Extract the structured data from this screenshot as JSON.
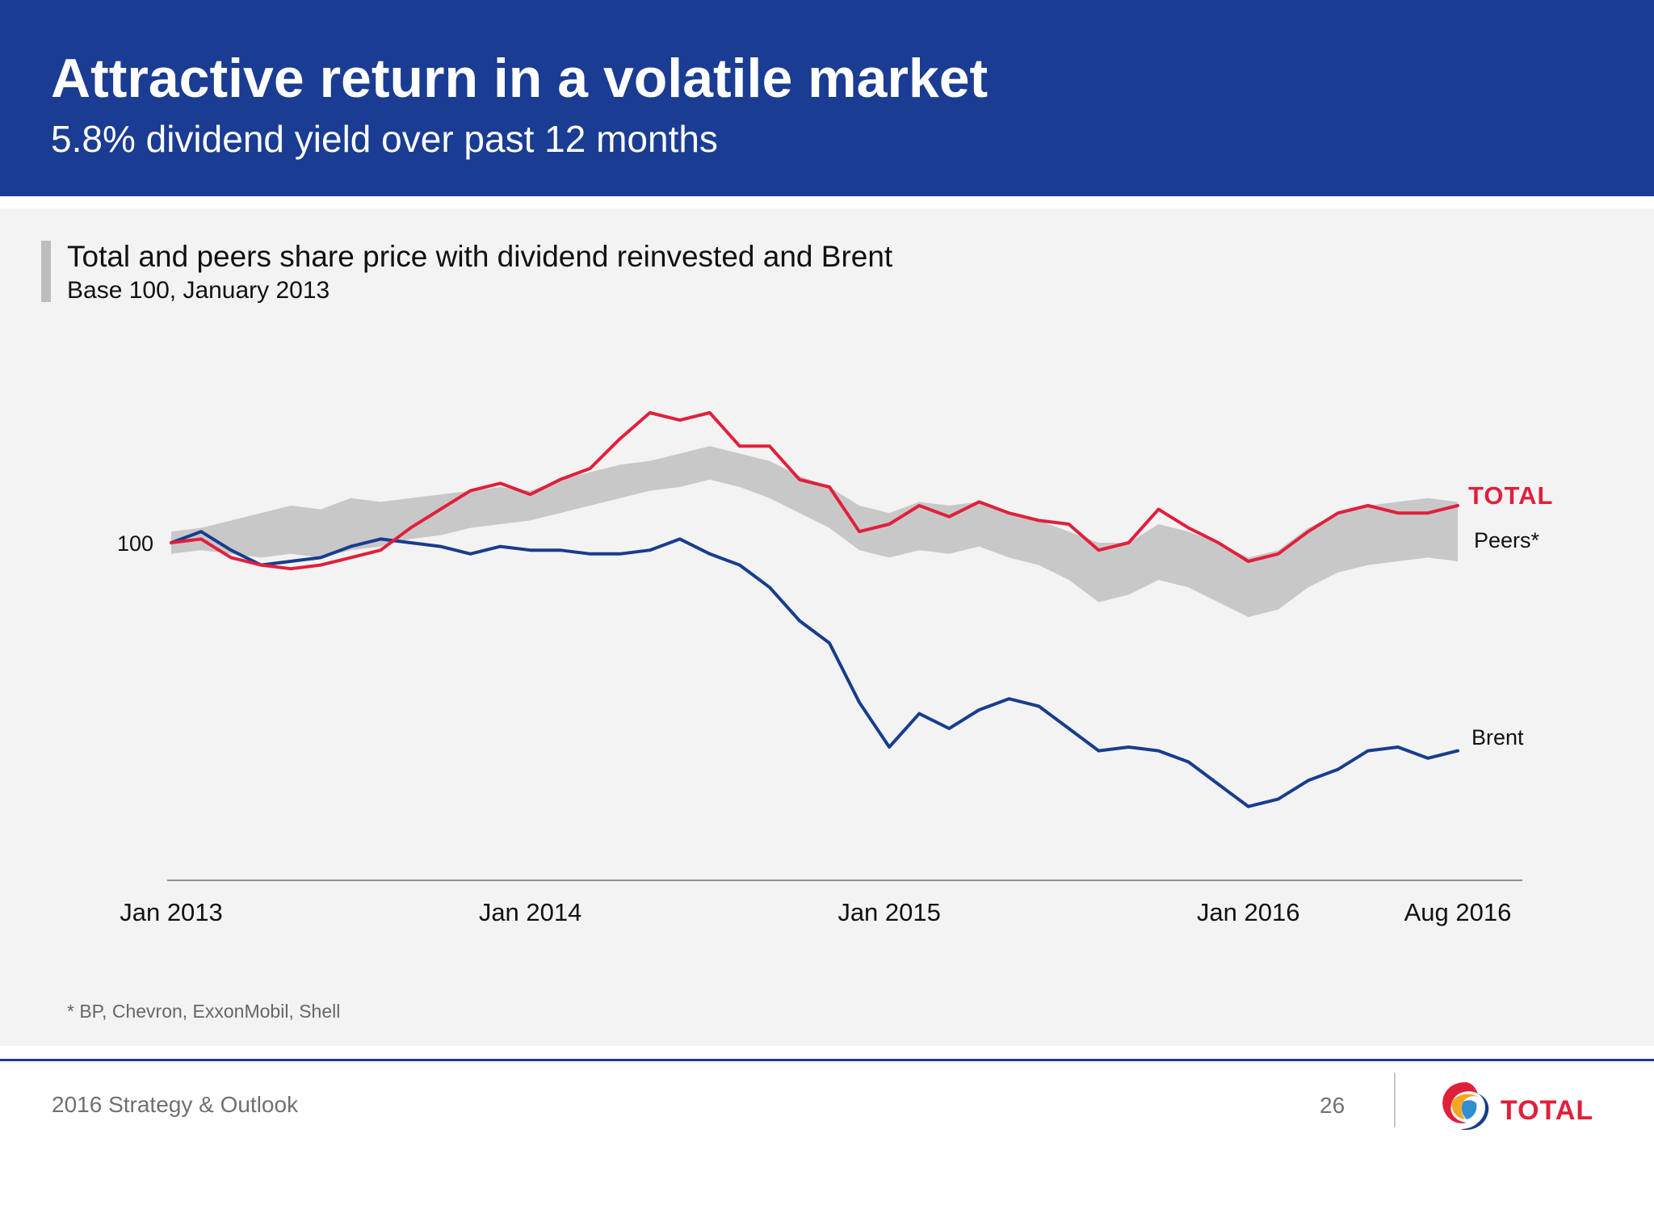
{
  "header": {
    "title": "Attractive return in a volatile market",
    "subtitle": "5.8% dividend yield over past 12 months"
  },
  "chart_data": {
    "type": "line",
    "title": "Total and peers share price with dividend reinvested and Brent",
    "subtitle": "Base 100, January 2013",
    "x_ticks": [
      "Jan 2013",
      "Jan 2014",
      "Jan 2015",
      "Jan 2016",
      "Aug 2016"
    ],
    "y_tick_label": "100",
    "xlim": [
      "2013-01",
      "2016-08"
    ],
    "ylim": [
      30,
      140
    ],
    "series": [
      {
        "name": "TOTAL",
        "color": "#e0203b",
        "style": "line",
        "points": [
          [
            "2013-01",
            100
          ],
          [
            "2013-02",
            101
          ],
          [
            "2013-03",
            96
          ],
          [
            "2013-04",
            94
          ],
          [
            "2013-05",
            93
          ],
          [
            "2013-06",
            94
          ],
          [
            "2013-07",
            96
          ],
          [
            "2013-08",
            98
          ],
          [
            "2013-09",
            104
          ],
          [
            "2013-10",
            109
          ],
          [
            "2013-11",
            114
          ],
          [
            "2013-12",
            116
          ],
          [
            "2014-01",
            113
          ],
          [
            "2014-02",
            117
          ],
          [
            "2014-03",
            120
          ],
          [
            "2014-04",
            128
          ],
          [
            "2014-05",
            135
          ],
          [
            "2014-06",
            133
          ],
          [
            "2014-07",
            135
          ],
          [
            "2014-08",
            126
          ],
          [
            "2014-09",
            126
          ],
          [
            "2014-10",
            117
          ],
          [
            "2014-11",
            115
          ],
          [
            "2014-12",
            103
          ],
          [
            "2015-01",
            105
          ],
          [
            "2015-02",
            110
          ],
          [
            "2015-03",
            107
          ],
          [
            "2015-04",
            111
          ],
          [
            "2015-05",
            108
          ],
          [
            "2015-06",
            106
          ],
          [
            "2015-07",
            105
          ],
          [
            "2015-08",
            98
          ],
          [
            "2015-09",
            100
          ],
          [
            "2015-10",
            109
          ],
          [
            "2015-11",
            104
          ],
          [
            "2015-12",
            100
          ],
          [
            "2016-01",
            95
          ],
          [
            "2016-02",
            97
          ],
          [
            "2016-03",
            103
          ],
          [
            "2016-04",
            108
          ],
          [
            "2016-05",
            110
          ],
          [
            "2016-06",
            108
          ],
          [
            "2016-07",
            108
          ],
          [
            "2016-08",
            110
          ]
        ]
      },
      {
        "name": "Peers*",
        "color": "#c9c8c9",
        "style": "band",
        "points": [
          [
            "2013-01",
            97,
            103
          ],
          [
            "2013-02",
            98,
            104
          ],
          [
            "2013-03",
            97,
            106
          ],
          [
            "2013-04",
            96,
            108
          ],
          [
            "2013-05",
            97,
            110
          ],
          [
            "2013-06",
            96,
            109
          ],
          [
            "2013-07",
            98,
            112
          ],
          [
            "2013-08",
            99,
            111
          ],
          [
            "2013-09",
            101,
            112
          ],
          [
            "2013-10",
            102,
            113
          ],
          [
            "2013-11",
            104,
            114
          ],
          [
            "2013-12",
            105,
            115
          ],
          [
            "2014-01",
            106,
            114
          ],
          [
            "2014-02",
            108,
            117
          ],
          [
            "2014-03",
            110,
            119
          ],
          [
            "2014-04",
            112,
            121
          ],
          [
            "2014-05",
            114,
            122
          ],
          [
            "2014-06",
            115,
            124
          ],
          [
            "2014-07",
            117,
            126
          ],
          [
            "2014-08",
            115,
            124
          ],
          [
            "2014-09",
            112,
            122
          ],
          [
            "2014-10",
            108,
            118
          ],
          [
            "2014-11",
            104,
            115
          ],
          [
            "2014-12",
            98,
            110
          ],
          [
            "2015-01",
            96,
            108
          ],
          [
            "2015-02",
            98,
            111
          ],
          [
            "2015-03",
            97,
            110
          ],
          [
            "2015-04",
            99,
            111
          ],
          [
            "2015-05",
            96,
            108
          ],
          [
            "2015-06",
            94,
            106
          ],
          [
            "2015-07",
            90,
            103
          ],
          [
            "2015-08",
            84,
            100
          ],
          [
            "2015-09",
            86,
            100
          ],
          [
            "2015-10",
            90,
            105
          ],
          [
            "2015-11",
            88,
            103
          ],
          [
            "2015-12",
            84,
            100
          ],
          [
            "2016-01",
            80,
            96
          ],
          [
            "2016-02",
            82,
            98
          ],
          [
            "2016-03",
            88,
            104
          ],
          [
            "2016-04",
            92,
            108
          ],
          [
            "2016-05",
            94,
            110
          ],
          [
            "2016-06",
            95,
            111
          ],
          [
            "2016-07",
            96,
            112
          ],
          [
            "2016-08",
            95,
            111
          ]
        ]
      },
      {
        "name": "Brent",
        "color": "#173d8d",
        "style": "line",
        "points": [
          [
            "2013-01",
            100
          ],
          [
            "2013-02",
            103
          ],
          [
            "2013-03",
            98
          ],
          [
            "2013-04",
            94
          ],
          [
            "2013-05",
            95
          ],
          [
            "2013-06",
            96
          ],
          [
            "2013-07",
            99
          ],
          [
            "2013-08",
            101
          ],
          [
            "2013-09",
            100
          ],
          [
            "2013-10",
            99
          ],
          [
            "2013-11",
            97
          ],
          [
            "2013-12",
            99
          ],
          [
            "2014-01",
            98
          ],
          [
            "2014-02",
            98
          ],
          [
            "2014-03",
            97
          ],
          [
            "2014-04",
            97
          ],
          [
            "2014-05",
            98
          ],
          [
            "2014-06",
            101
          ],
          [
            "2014-07",
            97
          ],
          [
            "2014-08",
            94
          ],
          [
            "2014-09",
            88
          ],
          [
            "2014-10",
            79
          ],
          [
            "2014-11",
            73
          ],
          [
            "2014-12",
            57
          ],
          [
            "2015-01",
            45
          ],
          [
            "2015-02",
            54
          ],
          [
            "2015-03",
            50
          ],
          [
            "2015-04",
            55
          ],
          [
            "2015-05",
            58
          ],
          [
            "2015-06",
            56
          ],
          [
            "2015-07",
            50
          ],
          [
            "2015-08",
            44
          ],
          [
            "2015-09",
            45
          ],
          [
            "2015-10",
            44
          ],
          [
            "2015-11",
            41
          ],
          [
            "2015-12",
            35
          ],
          [
            "2016-01",
            29
          ],
          [
            "2016-02",
            31
          ],
          [
            "2016-03",
            36
          ],
          [
            "2016-04",
            39
          ],
          [
            "2016-05",
            44
          ],
          [
            "2016-06",
            45
          ],
          [
            "2016-07",
            42
          ],
          [
            "2016-08",
            44
          ]
        ]
      }
    ],
    "legend": "inline labels at right end of each series",
    "grid": false
  },
  "footnote": "* BP, Chevron, ExxonMobil, Shell",
  "footer": {
    "left_text": "2016 Strategy & Outlook",
    "page_number": "26",
    "logo_text": "TOTAL"
  }
}
